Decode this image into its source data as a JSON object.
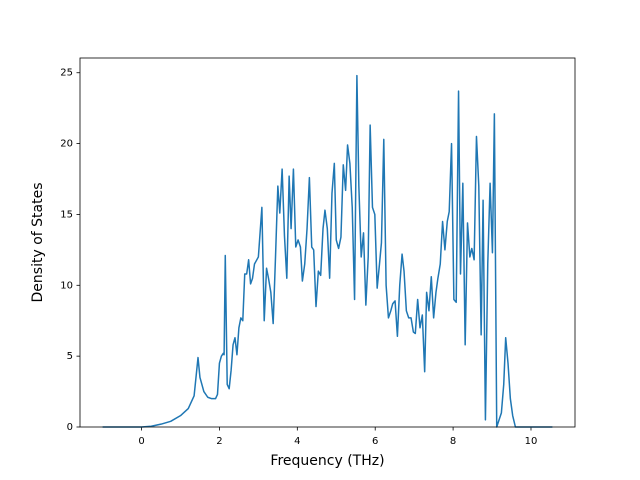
{
  "chart_data": {
    "type": "line",
    "x_label": "Frequency (THz)",
    "y_label": "Density of States",
    "xlim": [
      -1.58,
      11.13
    ],
    "ylim": [
      0,
      26.04
    ],
    "xticks": [
      0,
      2,
      4,
      6,
      8,
      10
    ],
    "yticks": [
      0,
      5,
      10,
      15,
      20,
      25
    ],
    "series": [
      {
        "color": "#1f77b4",
        "x": [
          -1,
          0,
          0.25,
          0.5,
          0.75,
          1.0,
          1.2,
          1.35,
          1.45,
          1.5,
          1.6,
          1.7,
          1.8,
          1.9,
          1.95,
          2.0,
          2.05,
          2.1,
          2.12,
          2.15,
          2.2,
          2.25,
          2.3,
          2.35,
          2.4,
          2.45,
          2.5,
          2.55,
          2.6,
          2.65,
          2.7,
          2.75,
          2.8,
          2.85,
          2.9,
          3.0,
          3.09,
          3.15,
          3.21,
          3.26,
          3.32,
          3.38,
          3.44,
          3.5,
          3.55,
          3.61,
          3.67,
          3.73,
          3.79,
          3.84,
          3.9,
          3.96,
          4.02,
          4.08,
          4.13,
          4.19,
          4.25,
          4.31,
          4.37,
          4.42,
          4.48,
          4.54,
          4.6,
          4.66,
          4.71,
          4.77,
          4.83,
          4.89,
          4.95,
          5.0,
          5.06,
          5.12,
          5.18,
          5.24,
          5.29,
          5.35,
          5.41,
          5.47,
          5.53,
          5.58,
          5.64,
          5.7,
          5.76,
          5.82,
          5.87,
          5.93,
          5.99,
          6.05,
          6.11,
          6.16,
          6.22,
          6.28,
          6.34,
          6.4,
          6.45,
          6.51,
          6.57,
          6.63,
          6.69,
          6.74,
          6.8,
          6.86,
          6.92,
          6.98,
          7.03,
          7.09,
          7.15,
          7.21,
          7.27,
          7.32,
          7.38,
          7.44,
          7.5,
          7.56,
          7.61,
          7.67,
          7.73,
          7.79,
          7.85,
          7.9,
          7.96,
          8.02,
          8.08,
          8.14,
          8.19,
          8.25,
          8.31,
          8.37,
          8.43,
          8.48,
          8.54,
          8.6,
          8.66,
          8.72,
          8.77,
          8.83,
          8.89,
          8.95,
          9.01,
          9.06,
          9.12,
          9.18,
          9.24,
          9.3,
          9.35,
          9.41,
          9.47,
          9.53,
          9.6,
          10.55
        ],
        "values": [
          0,
          0,
          0.05,
          0.2,
          0.4,
          0.8,
          1.3,
          2.2,
          4.9,
          3.5,
          2.5,
          2.1,
          2.0,
          2.0,
          2.3,
          4.5,
          5.0,
          5.2,
          5.1,
          12.1,
          3.0,
          2.7,
          4.0,
          5.8,
          6.3,
          5.1,
          7.0,
          7.7,
          7.5,
          10.8,
          10.8,
          11.8,
          10.1,
          10.5,
          11.5,
          12.0,
          15.5,
          7.5,
          11.2,
          10.5,
          9.5,
          7.3,
          12.0,
          17.0,
          15.1,
          18.2,
          13.5,
          10.5,
          17.7,
          14.0,
          18.2,
          12.7,
          13.2,
          12.7,
          10.3,
          11.5,
          14.0,
          17.6,
          12.7,
          12.5,
          8.5,
          11.0,
          10.7,
          14.0,
          15.3,
          14.0,
          10.5,
          16.5,
          18.6,
          13.2,
          12.6,
          13.4,
          18.5,
          16.7,
          19.9,
          18.6,
          15.5,
          9.0,
          24.8,
          17.0,
          12.0,
          13.7,
          8.6,
          12.0,
          21.3,
          15.5,
          15.0,
          9.8,
          11.5,
          13.0,
          20.3,
          10.0,
          7.7,
          8.2,
          8.7,
          8.9,
          6.4,
          10.0,
          12.2,
          11.0,
          8.2,
          7.7,
          7.7,
          6.7,
          6.6,
          9.0,
          7.0,
          7.9,
          3.9,
          9.5,
          8.2,
          10.6,
          7.7,
          9.5,
          10.5,
          11.5,
          14.5,
          12.5,
          14.5,
          15.2,
          20.0,
          9.0,
          8.8,
          23.7,
          10.8,
          17.2,
          5.8,
          14.4,
          12.0,
          12.6,
          11.8,
          20.5,
          17.0,
          6.5,
          16.0,
          0.5,
          11.5,
          17.2,
          12.3,
          22.1,
          0,
          0.5,
          1.0,
          3.0,
          6.3,
          4.5,
          2.0,
          0.8,
          0,
          0
        ]
      }
    ]
  }
}
